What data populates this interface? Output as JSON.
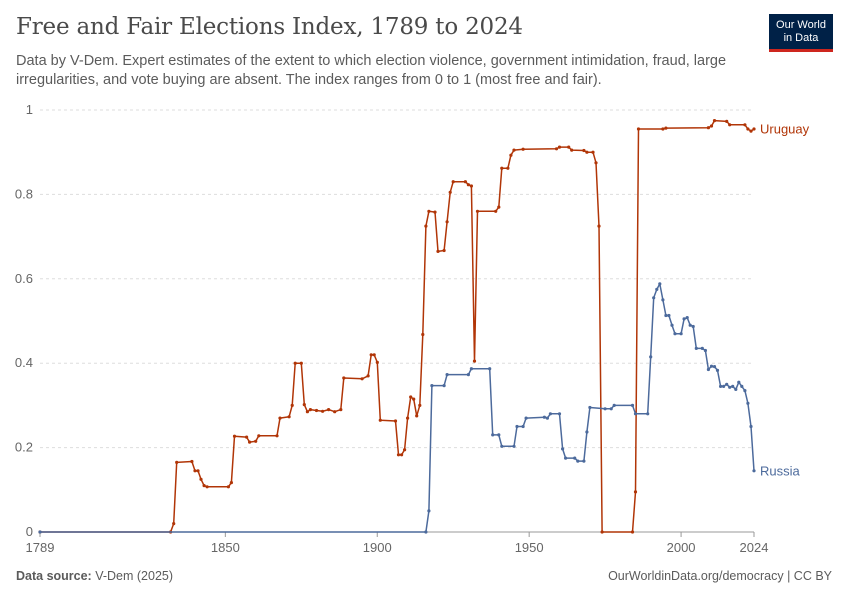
{
  "header": {
    "title": "Free and Fair Elections Index, 1789 to 2024",
    "subtitle": "Data by V-Dem. Expert estimates of the extent to which election violence, government intimidation, fraud, large irregularities, and vote buying are absent. The index ranges from 0 to 1 (most free and fair).",
    "logo_line1": "Our World",
    "logo_line2": "in Data"
  },
  "footer": {
    "source_label": "Data source:",
    "source_value": "V-Dem (2025)",
    "url": "OurWorldinData.org/democracy | CC BY"
  },
  "colors": {
    "uruguay": "#b13507",
    "russia": "#4c6a9c",
    "grid": "#dddddd",
    "axis": "#999999"
  },
  "chart_data": {
    "type": "line",
    "title": "Free and Fair Elections Index, 1789 to 2024",
    "xlim": [
      1789,
      2024
    ],
    "ylim": [
      0,
      1
    ],
    "x_ticks": [
      1789,
      1850,
      1900,
      1950,
      2000,
      2024
    ],
    "y_ticks": [
      0,
      0.2,
      0.4,
      0.6,
      0.8,
      1
    ],
    "y_tick_labels": [
      "0",
      "0.2",
      "0.4",
      "0.6",
      "0.8",
      "1"
    ],
    "grid": "horizontal dashed",
    "legend": "line-end labels",
    "series": [
      {
        "name": "Uruguay",
        "color": "#b13507",
        "points": [
          [
            1789,
            0
          ],
          [
            1832,
            0
          ],
          [
            1833,
            0.02
          ],
          [
            1834,
            0.165
          ],
          [
            1839,
            0.167
          ],
          [
            1840,
            0.145
          ],
          [
            1841,
            0.145
          ],
          [
            1842,
            0.125
          ],
          [
            1843,
            0.11
          ],
          [
            1844,
            0.107
          ],
          [
            1851,
            0.107
          ],
          [
            1852,
            0.117
          ],
          [
            1853,
            0.227
          ],
          [
            1857,
            0.225
          ],
          [
            1858,
            0.213
          ],
          [
            1860,
            0.215
          ],
          [
            1861,
            0.228
          ],
          [
            1867,
            0.228
          ],
          [
            1868,
            0.27
          ],
          [
            1871,
            0.273
          ],
          [
            1872,
            0.3
          ],
          [
            1873,
            0.4
          ],
          [
            1875,
            0.4
          ],
          [
            1876,
            0.302
          ],
          [
            1877,
            0.285
          ],
          [
            1878,
            0.29
          ],
          [
            1880,
            0.288
          ],
          [
            1882,
            0.286
          ],
          [
            1884,
            0.29
          ],
          [
            1886,
            0.285
          ],
          [
            1888,
            0.29
          ],
          [
            1889,
            0.365
          ],
          [
            1895,
            0.363
          ],
          [
            1897,
            0.37
          ],
          [
            1898,
            0.42
          ],
          [
            1899,
            0.42
          ],
          [
            1900,
            0.402
          ],
          [
            1901,
            0.265
          ],
          [
            1906,
            0.263
          ],
          [
            1907,
            0.183
          ],
          [
            1908,
            0.183
          ],
          [
            1909,
            0.195
          ],
          [
            1910,
            0.27
          ],
          [
            1911,
            0.32
          ],
          [
            1912,
            0.315
          ],
          [
            1913,
            0.275
          ],
          [
            1914,
            0.3
          ],
          [
            1915,
            0.468
          ],
          [
            1916,
            0.725
          ],
          [
            1917,
            0.76
          ],
          [
            1919,
            0.758
          ],
          [
            1920,
            0.665
          ],
          [
            1922,
            0.667
          ],
          [
            1923,
            0.735
          ],
          [
            1924,
            0.805
          ],
          [
            1925,
            0.83
          ],
          [
            1929,
            0.83
          ],
          [
            1930,
            0.823
          ],
          [
            1931,
            0.82
          ],
          [
            1932,
            0.405
          ],
          [
            1933,
            0.76
          ],
          [
            1939,
            0.76
          ],
          [
            1940,
            0.77
          ],
          [
            1941,
            0.862
          ],
          [
            1943,
            0.862
          ],
          [
            1944,
            0.893
          ],
          [
            1945,
            0.905
          ],
          [
            1948,
            0.907
          ],
          [
            1959,
            0.908
          ],
          [
            1960,
            0.912
          ],
          [
            1963,
            0.912
          ],
          [
            1964,
            0.905
          ],
          [
            1968,
            0.904
          ],
          [
            1969,
            0.9
          ],
          [
            1971,
            0.9
          ],
          [
            1972,
            0.875
          ],
          [
            1973,
            0.725
          ],
          [
            1974,
            0
          ],
          [
            1984,
            0
          ],
          [
            1985,
            0.095
          ],
          [
            1986,
            0.955
          ],
          [
            1994,
            0.955
          ],
          [
            1995,
            0.957
          ],
          [
            2009,
            0.958
          ],
          [
            2010,
            0.962
          ],
          [
            2011,
            0.975
          ],
          [
            2015,
            0.973
          ],
          [
            2016,
            0.965
          ],
          [
            2021,
            0.965
          ],
          [
            2022,
            0.955
          ],
          [
            2023,
            0.95
          ],
          [
            2024,
            0.955
          ]
        ]
      },
      {
        "name": "Russia",
        "color": "#4c6a9c",
        "points": [
          [
            1789,
            0
          ],
          [
            1916,
            0
          ],
          [
            1917,
            0.05
          ],
          [
            1918,
            0.347
          ],
          [
            1922,
            0.347
          ],
          [
            1923,
            0.373
          ],
          [
            1930,
            0.373
          ],
          [
            1931,
            0.387
          ],
          [
            1937,
            0.387
          ],
          [
            1938,
            0.23
          ],
          [
            1940,
            0.23
          ],
          [
            1941,
            0.203
          ],
          [
            1945,
            0.203
          ],
          [
            1946,
            0.25
          ],
          [
            1948,
            0.25
          ],
          [
            1949,
            0.27
          ],
          [
            1955,
            0.272
          ],
          [
            1956,
            0.27
          ],
          [
            1957,
            0.28
          ],
          [
            1960,
            0.28
          ],
          [
            1961,
            0.197
          ],
          [
            1962,
            0.175
          ],
          [
            1965,
            0.175
          ],
          [
            1966,
            0.168
          ],
          [
            1968,
            0.168
          ],
          [
            1969,
            0.237
          ],
          [
            1970,
            0.295
          ],
          [
            1975,
            0.292
          ],
          [
            1977,
            0.292
          ],
          [
            1978,
            0.3
          ],
          [
            1984,
            0.3
          ],
          [
            1985,
            0.28
          ],
          [
            1989,
            0.28
          ],
          [
            1990,
            0.415
          ],
          [
            1991,
            0.555
          ],
          [
            1992,
            0.575
          ],
          [
            1993,
            0.588
          ],
          [
            1994,
            0.55
          ],
          [
            1995,
            0.513
          ],
          [
            1996,
            0.513
          ],
          [
            1997,
            0.49
          ],
          [
            1998,
            0.47
          ],
          [
            2000,
            0.47
          ],
          [
            2001,
            0.505
          ],
          [
            2002,
            0.508
          ],
          [
            2003,
            0.49
          ],
          [
            2004,
            0.487
          ],
          [
            2005,
            0.435
          ],
          [
            2007,
            0.435
          ],
          [
            2008,
            0.43
          ],
          [
            2009,
            0.385
          ],
          [
            2010,
            0.393
          ],
          [
            2011,
            0.392
          ],
          [
            2012,
            0.383
          ],
          [
            2013,
            0.345
          ],
          [
            2014,
            0.345
          ],
          [
            2015,
            0.35
          ],
          [
            2016,
            0.343
          ],
          [
            2017,
            0.345
          ],
          [
            2018,
            0.338
          ],
          [
            2019,
            0.355
          ],
          [
            2020,
            0.345
          ],
          [
            2021,
            0.335
          ],
          [
            2022,
            0.305
          ],
          [
            2023,
            0.25
          ],
          [
            2024,
            0.145
          ]
        ]
      }
    ]
  }
}
